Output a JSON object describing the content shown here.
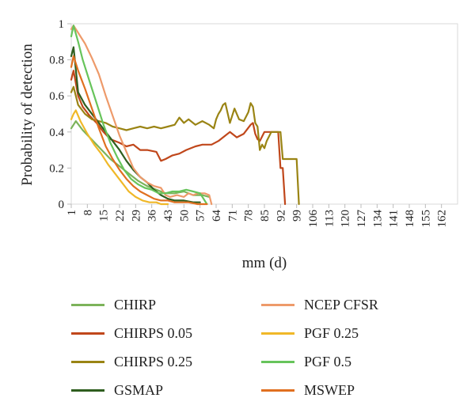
{
  "chart_data": {
    "type": "line",
    "title": "",
    "xlabel": "mm (d)",
    "ylabel": "Probability of detection",
    "xlim": [
      1,
      169
    ],
    "ylim": [
      0,
      1
    ],
    "x_ticks": [
      1,
      8,
      15,
      22,
      29,
      36,
      43,
      50,
      57,
      64,
      71,
      78,
      85,
      92,
      99,
      106,
      113,
      120,
      127,
      134,
      141,
      148,
      155,
      162
    ],
    "y_ticks": [
      0,
      0.2,
      0.4,
      0.6,
      0.8,
      1
    ],
    "y_tick_labels": [
      "0",
      "0.2",
      "0.4",
      "0.6",
      "0.8",
      "1"
    ],
    "grid": false,
    "legend_position": "bottom",
    "series": [
      {
        "name": "CHIRP",
        "color": "#7cb35a",
        "x": [
          1,
          3,
          6,
          9,
          12,
          15,
          18,
          22,
          26,
          30,
          34,
          38,
          42,
          46,
          50,
          54,
          58,
          61
        ],
        "y": [
          0.42,
          0.46,
          0.41,
          0.37,
          0.33,
          0.29,
          0.25,
          0.21,
          0.17,
          0.13,
          0.1,
          0.08,
          0.06,
          0.06,
          0.07,
          0.05,
          0.05,
          0.04
        ]
      },
      {
        "name": "CHIRPS 0.05",
        "color": "#c0471b",
        "x": [
          1,
          2,
          4,
          6,
          9,
          12,
          15,
          18,
          22,
          25,
          28,
          31,
          34,
          38,
          40,
          42,
          45,
          48,
          51,
          55,
          58,
          62,
          65,
          68,
          70,
          73,
          76,
          79,
          80,
          81,
          82,
          83,
          85,
          88,
          91,
          92,
          93,
          94
        ],
        "y": [
          0.69,
          0.74,
          0.6,
          0.54,
          0.49,
          0.45,
          0.4,
          0.36,
          0.34,
          0.32,
          0.33,
          0.3,
          0.3,
          0.29,
          0.24,
          0.25,
          0.27,
          0.28,
          0.3,
          0.32,
          0.33,
          0.33,
          0.35,
          0.38,
          0.4,
          0.37,
          0.39,
          0.44,
          0.45,
          0.39,
          0.36,
          0.35,
          0.4,
          0.4,
          0.4,
          0.2,
          0.2,
          0.0
        ]
      },
      {
        "name": "CHIRPS 0.25",
        "color": "#9a8414",
        "x": [
          1,
          2,
          4,
          7,
          10,
          13,
          16,
          19,
          22,
          25,
          28,
          31,
          34,
          37,
          40,
          43,
          46,
          48,
          50,
          52,
          55,
          58,
          61,
          63,
          64,
          65,
          66,
          67,
          68,
          70,
          72,
          74,
          76,
          78,
          79,
          80,
          81,
          82,
          83,
          84,
          85,
          86,
          88,
          90,
          92,
          93,
          96,
          99,
          100
        ],
        "y": [
          0.62,
          0.65,
          0.55,
          0.5,
          0.47,
          0.46,
          0.45,
          0.43,
          0.42,
          0.41,
          0.42,
          0.43,
          0.42,
          0.43,
          0.42,
          0.43,
          0.44,
          0.48,
          0.45,
          0.47,
          0.44,
          0.46,
          0.44,
          0.42,
          0.47,
          0.5,
          0.52,
          0.55,
          0.56,
          0.45,
          0.53,
          0.47,
          0.46,
          0.51,
          0.56,
          0.54,
          0.45,
          0.43,
          0.3,
          0.33,
          0.31,
          0.35,
          0.4,
          0.4,
          0.4,
          0.25,
          0.25,
          0.25,
          0.0
        ]
      },
      {
        "name": "GSMAP",
        "color": "#2f5e1f",
        "x": [
          1,
          2,
          4,
          7,
          10,
          13,
          16,
          19,
          22,
          25,
          28,
          31,
          34,
          37,
          40,
          43,
          46,
          50,
          54,
          57
        ],
        "y": [
          0.82,
          0.87,
          0.62,
          0.55,
          0.5,
          0.45,
          0.4,
          0.35,
          0.3,
          0.24,
          0.19,
          0.15,
          0.12,
          0.08,
          0.05,
          0.03,
          0.02,
          0.02,
          0.01,
          0.01
        ]
      },
      {
        "name": "NCEP CFSR",
        "color": "#ee9a6a",
        "x": [
          1,
          2,
          4,
          7,
          10,
          13,
          16,
          19,
          22,
          25,
          28,
          31,
          34,
          37,
          40,
          42,
          44,
          47,
          50,
          52,
          54,
          56,
          59,
          61,
          62
        ],
        "y": [
          0.97,
          0.99,
          0.95,
          0.89,
          0.81,
          0.72,
          0.6,
          0.49,
          0.38,
          0.29,
          0.2,
          0.15,
          0.12,
          0.1,
          0.09,
          0.05,
          0.04,
          0.05,
          0.04,
          0.06,
          0.05,
          0.06,
          0.06,
          0.05,
          0.0
        ]
      },
      {
        "name": "PGF 0.25",
        "color": "#f0b828",
        "x": [
          1,
          2,
          3,
          5,
          8,
          11,
          14,
          17,
          20,
          23,
          26,
          29,
          32,
          35,
          38,
          40,
          43
        ],
        "y": [
          0.47,
          0.5,
          0.52,
          0.46,
          0.39,
          0.33,
          0.28,
          0.22,
          0.17,
          0.12,
          0.07,
          0.04,
          0.02,
          0.01,
          0.01,
          0.0,
          0.0
        ]
      },
      {
        "name": "PGF 0.5",
        "color": "#67c45b",
        "x": [
          1,
          2,
          4,
          6,
          9,
          12,
          15,
          18,
          21,
          24,
          27,
          30,
          33,
          36,
          39,
          42,
          45,
          48,
          51,
          54,
          57,
          60
        ],
        "y": [
          0.93,
          0.99,
          0.9,
          0.8,
          0.68,
          0.56,
          0.44,
          0.34,
          0.26,
          0.19,
          0.14,
          0.11,
          0.09,
          0.08,
          0.06,
          0.06,
          0.07,
          0.07,
          0.08,
          0.07,
          0.06,
          0.0
        ]
      },
      {
        "name": "MSWEP",
        "color": "#e07020",
        "x": [
          1,
          2,
          4,
          7,
          10,
          13,
          16,
          19,
          22,
          25,
          28,
          31,
          34,
          37,
          40,
          43,
          46,
          49,
          52,
          56,
          60
        ],
        "y": [
          0.76,
          0.82,
          0.74,
          0.64,
          0.53,
          0.42,
          0.32,
          0.25,
          0.19,
          0.14,
          0.1,
          0.07,
          0.05,
          0.03,
          0.02,
          0.02,
          0.01,
          0.01,
          0.01,
          0.0,
          0.0
        ]
      }
    ]
  }
}
